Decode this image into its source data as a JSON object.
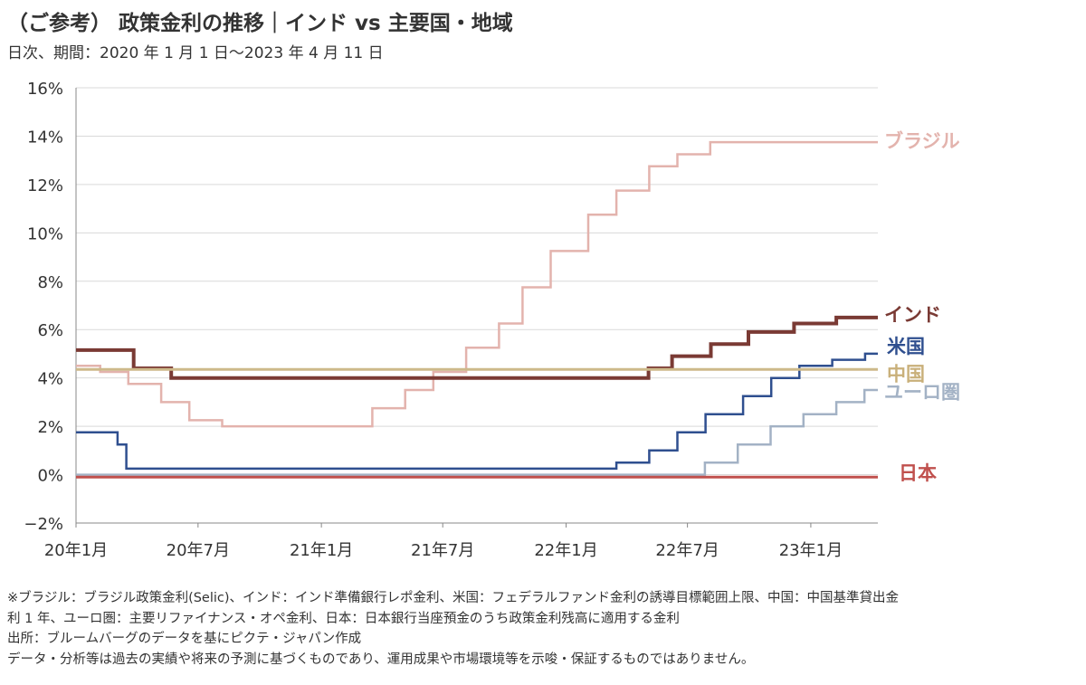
{
  "header": {
    "title": "（ご参考） 政策金利の推移｜インド vs 主要国・地域",
    "subtitle": "日次、期間：2020 年 1 月 1 日～2023 年 4 月 11 日"
  },
  "chart_data": {
    "type": "line",
    "ylim": [
      -2,
      16
    ],
    "yticks": [
      "−2%",
      "0%",
      "2%",
      "4%",
      "6%",
      "8%",
      "10%",
      "12%",
      "14%",
      "16%"
    ],
    "ytick_values": [
      -2,
      0,
      2,
      4,
      6,
      8,
      10,
      12,
      14,
      16
    ],
    "xlim": [
      "2020-01-01",
      "2023-04-11"
    ],
    "xticks": [
      {
        "date": "2020-01-01",
        "label": "20年1月"
      },
      {
        "date": "2020-07-01",
        "label": "20年7月"
      },
      {
        "date": "2021-01-01",
        "label": "21年1月"
      },
      {
        "date": "2021-07-01",
        "label": "21年7月"
      },
      {
        "date": "2022-01-01",
        "label": "22年1月"
      },
      {
        "date": "2022-07-01",
        "label": "22年7月"
      },
      {
        "date": "2023-01-01",
        "label": "23年1月"
      }
    ],
    "grid": "horizontal",
    "legend": "direct labels at right end",
    "series": [
      {
        "name": "ブラジル",
        "color": "#e3b3ad",
        "label_color": "#e3b3ad",
        "width": 2.5,
        "points": [
          [
            "2020-01-01",
            4.5
          ],
          [
            "2020-02-06",
            4.25
          ],
          [
            "2020-03-19",
            3.75
          ],
          [
            "2020-05-07",
            3.0
          ],
          [
            "2020-06-18",
            2.25
          ],
          [
            "2020-08-06",
            2.0
          ],
          [
            "2021-03-18",
            2.75
          ],
          [
            "2021-05-06",
            3.5
          ],
          [
            "2021-06-17",
            4.25
          ],
          [
            "2021-08-05",
            5.25
          ],
          [
            "2021-09-23",
            6.25
          ],
          [
            "2021-10-28",
            7.75
          ],
          [
            "2021-12-09",
            9.25
          ],
          [
            "2022-02-03",
            10.75
          ],
          [
            "2022-03-17",
            11.75
          ],
          [
            "2022-05-05",
            12.75
          ],
          [
            "2022-06-16",
            13.25
          ],
          [
            "2022-08-04",
            13.75
          ],
          [
            "2023-04-11",
            13.75
          ]
        ]
      },
      {
        "name": "インド",
        "color": "#7a3a34",
        "label_color": "#7a3a34",
        "width": 4,
        "points": [
          [
            "2020-01-01",
            5.15
          ],
          [
            "2020-03-27",
            4.4
          ],
          [
            "2020-05-22",
            4.0
          ],
          [
            "2022-05-04",
            4.4
          ],
          [
            "2022-06-08",
            4.9
          ],
          [
            "2022-08-05",
            5.4
          ],
          [
            "2022-09-30",
            5.9
          ],
          [
            "2022-12-07",
            6.25
          ],
          [
            "2023-02-08",
            6.5
          ],
          [
            "2023-04-11",
            6.5
          ]
        ]
      },
      {
        "name": "米国",
        "color": "#2f4f8f",
        "label_color": "#2f4f8f",
        "width": 2.5,
        "points": [
          [
            "2020-01-01",
            1.75
          ],
          [
            "2020-03-03",
            1.25
          ],
          [
            "2020-03-16",
            0.25
          ],
          [
            "2022-03-17",
            0.5
          ],
          [
            "2022-05-05",
            1.0
          ],
          [
            "2022-06-16",
            1.75
          ],
          [
            "2022-07-28",
            2.5
          ],
          [
            "2022-09-22",
            3.25
          ],
          [
            "2022-11-03",
            4.0
          ],
          [
            "2022-12-15",
            4.5
          ],
          [
            "2023-02-02",
            4.75
          ],
          [
            "2023-03-23",
            5.0
          ],
          [
            "2023-04-11",
            5.0
          ]
        ]
      },
      {
        "name": "中国",
        "color": "#cdb98a",
        "label_color": "#c9b07a",
        "width": 3,
        "points": [
          [
            "2020-01-01",
            4.35
          ],
          [
            "2023-04-11",
            4.35
          ]
        ]
      },
      {
        "name": "ユーロ圏",
        "color": "#a3b2c5",
        "label_color": "#a3b2c5",
        "width": 2.5,
        "points": [
          [
            "2020-01-01",
            0.0
          ],
          [
            "2022-07-27",
            0.5
          ],
          [
            "2022-09-14",
            1.25
          ],
          [
            "2022-11-02",
            2.0
          ],
          [
            "2022-12-21",
            2.5
          ],
          [
            "2023-02-08",
            3.0
          ],
          [
            "2023-03-22",
            3.5
          ],
          [
            "2023-04-11",
            3.5
          ]
        ]
      },
      {
        "name": "日本",
        "color": "#c0504d",
        "label_color": "#c0504d",
        "width": 3,
        "points": [
          [
            "2020-01-01",
            -0.1
          ],
          [
            "2023-04-11",
            -0.1
          ]
        ]
      }
    ]
  },
  "notes": [
    "※ブラジル：ブラジル政策金利(Selic)、インド：インド準備銀行レポ金利、米国：フェデラルファンド金利の誘導目標範囲上限、中国：中国基準貸出金",
    "利 1 年、ユーロ圏：主要リファイナンス・オペ金利、日本：日本銀行当座預金のうち政策金利残高に適用する金利",
    "出所：ブルームバーグのデータを基にピクテ・ジャパン作成",
    "データ・分析等は過去の実績や将来の予測に基づくものであり、運用成果や市場環境等を示唆・保証するものではありません。"
  ]
}
